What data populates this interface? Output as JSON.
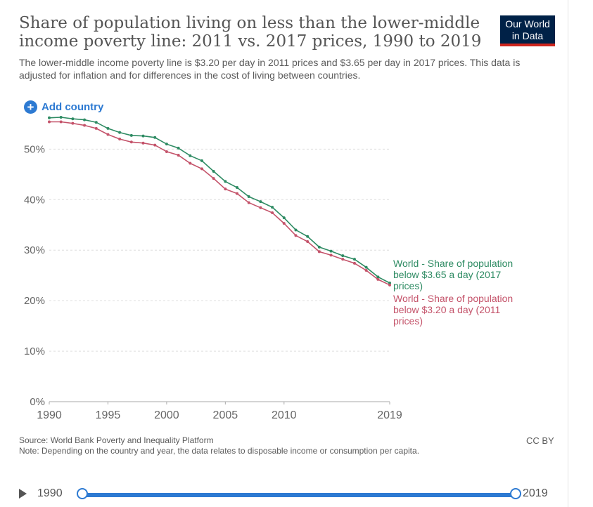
{
  "header": {
    "title": "Share of population living on less than the lower-middle income poverty line: 2011 vs. 2017 prices, 1990 to 2019",
    "subtitle": "The lower-middle income poverty line is $3.20 per day in 2011 prices and $3.65 per day in 2017 prices. This data is adjusted for inflation and for differences in the cost of living between countries.",
    "logo_line1": "Our World",
    "logo_line2": "in Data"
  },
  "controls": {
    "add_country": "Add country"
  },
  "footer": {
    "source": "Source: World Bank Poverty and Inequality Platform",
    "note": "Note: Depending on the country and year, the data relates to disposable income or consumption per capita.",
    "license": "CC BY"
  },
  "timeline": {
    "start": "1990",
    "end": "2019"
  },
  "colors": {
    "series_2017": "#2e8b63",
    "series_2011": "#c4536a",
    "grid": "#dddddd",
    "axis_text": "#666666",
    "accent": "#2d7ad2"
  },
  "chart_data": {
    "type": "line",
    "title": "Share of population living on less than the lower-middle income poverty line: 2011 vs. 2017 prices, 1990 to 2019",
    "x": [
      1990,
      1991,
      1992,
      1993,
      1994,
      1995,
      1996,
      1997,
      1998,
      1999,
      2000,
      2001,
      2002,
      2003,
      2004,
      2005,
      2006,
      2007,
      2008,
      2009,
      2010,
      2011,
      2012,
      2013,
      2014,
      2015,
      2016,
      2017,
      2018,
      2019
    ],
    "series": [
      {
        "name": "World - Share of population below $3.65 a day (2017 prices)",
        "label_lines": [
          "World - Share of population",
          "below $3.65 a day (2017",
          "prices)"
        ],
        "values": [
          56.2,
          56.3,
          56.0,
          55.8,
          55.3,
          54.1,
          53.3,
          52.7,
          52.6,
          52.3,
          51.0,
          50.2,
          48.7,
          47.7,
          45.6,
          43.6,
          42.4,
          40.6,
          39.6,
          38.5,
          36.4,
          34.0,
          32.7,
          30.6,
          29.8,
          28.9,
          28.2,
          26.6,
          24.7,
          23.5
        ]
      },
      {
        "name": "World - Share of population below $3.20 a day (2011 prices)",
        "label_lines": [
          "World - Share of population",
          "below $3.20 a day (2011",
          "prices)"
        ],
        "values": [
          55.4,
          55.4,
          55.1,
          54.7,
          54.1,
          52.9,
          52.0,
          51.4,
          51.2,
          50.8,
          49.5,
          48.8,
          47.2,
          46.1,
          44.2,
          42.1,
          41.2,
          39.4,
          38.4,
          37.4,
          35.3,
          32.9,
          31.7,
          29.7,
          29.0,
          28.2,
          27.4,
          26.0,
          24.2,
          23.1
        ]
      }
    ],
    "yticks": [
      "0%",
      "10%",
      "20%",
      "30%",
      "40%",
      "50%"
    ],
    "ytick_values": [
      0,
      10,
      20,
      30,
      40,
      50
    ],
    "xticks": [
      "1990",
      "1995",
      "2000",
      "2005",
      "2010",
      "2019"
    ],
    "xtick_values": [
      1990,
      1995,
      2000,
      2005,
      2010,
      2019
    ],
    "ylim": [
      0,
      57
    ],
    "xlim": [
      1990,
      2019
    ],
    "xlabel": "",
    "ylabel": "",
    "grid": true
  }
}
